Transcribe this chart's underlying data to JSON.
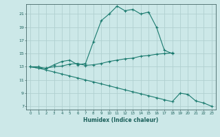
{
  "xlabel": "Humidex (Indice chaleur)",
  "bg_color": "#cce8e8",
  "line_color": "#1a7a6e",
  "grid_color": "#b0d0d0",
  "xlim": [
    -0.5,
    23.5
  ],
  "ylim": [
    6.5,
    22.5
  ],
  "xticks": [
    0,
    1,
    2,
    3,
    4,
    5,
    6,
    7,
    8,
    9,
    10,
    11,
    12,
    13,
    14,
    15,
    16,
    17,
    18,
    19,
    20,
    21,
    22,
    23
  ],
  "yticks": [
    7,
    9,
    11,
    13,
    15,
    17,
    19,
    21
  ],
  "line1_x": [
    0,
    1,
    2,
    3,
    4,
    5,
    6,
    7,
    8,
    9,
    10,
    11,
    12,
    13,
    14,
    15,
    16,
    17,
    18
  ],
  "line1_y": [
    13,
    13,
    12.7,
    13.3,
    13.8,
    14.0,
    13.3,
    13.5,
    16.8,
    20.0,
    21.0,
    22.2,
    21.5,
    21.7,
    21.0,
    21.3,
    19.0,
    15.5,
    15.0
  ],
  "line2_x": [
    0,
    1,
    2,
    3,
    4,
    5,
    6,
    7,
    8,
    9,
    10,
    11,
    12,
    13,
    14,
    15,
    16,
    17,
    18
  ],
  "line2_y": [
    13,
    12.8,
    12.8,
    13.0,
    13.1,
    13.4,
    13.5,
    13.2,
    13.3,
    13.5,
    13.8,
    14.0,
    14.2,
    14.3,
    14.6,
    14.7,
    14.9,
    15.0,
    15.1
  ],
  "line3_x": [
    0,
    1,
    2,
    3,
    4,
    5,
    6,
    7,
    8,
    9,
    10,
    11,
    12,
    13,
    14,
    15,
    16,
    17,
    18,
    19,
    20,
    21,
    22,
    23
  ],
  "line3_y": [
    13,
    12.8,
    12.5,
    12.2,
    11.9,
    11.6,
    11.3,
    11.0,
    10.7,
    10.4,
    10.1,
    9.8,
    9.5,
    9.2,
    8.9,
    8.6,
    8.3,
    8.0,
    7.7,
    9.0,
    8.8,
    7.8,
    7.5,
    7.0
  ]
}
